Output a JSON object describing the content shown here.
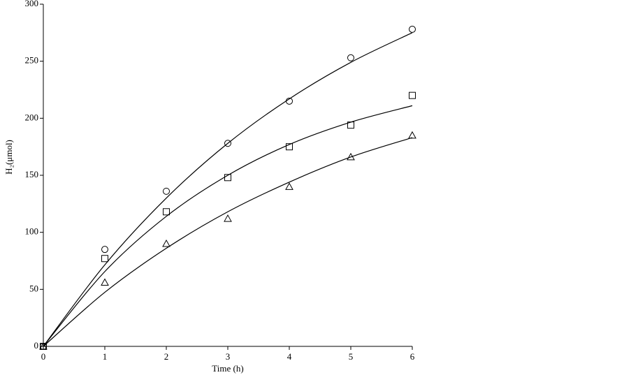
{
  "chart_data": {
    "type": "scatter",
    "x_label": "Time (h)",
    "y_label": "H₂(μmol)",
    "x": [
      0,
      1,
      2,
      3,
      4,
      5,
      6
    ],
    "xlim": [
      0,
      6
    ],
    "ylim": [
      0,
      300
    ],
    "xticks": [
      0,
      1,
      2,
      3,
      4,
      5,
      6
    ],
    "yticks": [
      0,
      50,
      100,
      150,
      200,
      250,
      300
    ],
    "series": [
      {
        "marker": "circle",
        "color": "#000000",
        "values": [
          0,
          85,
          136,
          178,
          215,
          253,
          278
        ],
        "fit": [
          0,
          71.5,
          130,
          178,
          217,
          249,
          275
        ]
      },
      {
        "marker": "square",
        "color": "#000000",
        "values": [
          0,
          77,
          118,
          148,
          175,
          194,
          220
        ],
        "fit": [
          0,
          65.6,
          114,
          150,
          177,
          196.6,
          211
        ]
      },
      {
        "marker": "triangle",
        "color": "#000000",
        "values": [
          0,
          56,
          90,
          112,
          140,
          166,
          185
        ],
        "fit": [
          0,
          47.4,
          86,
          118,
          144,
          166,
          183
        ]
      }
    ]
  }
}
